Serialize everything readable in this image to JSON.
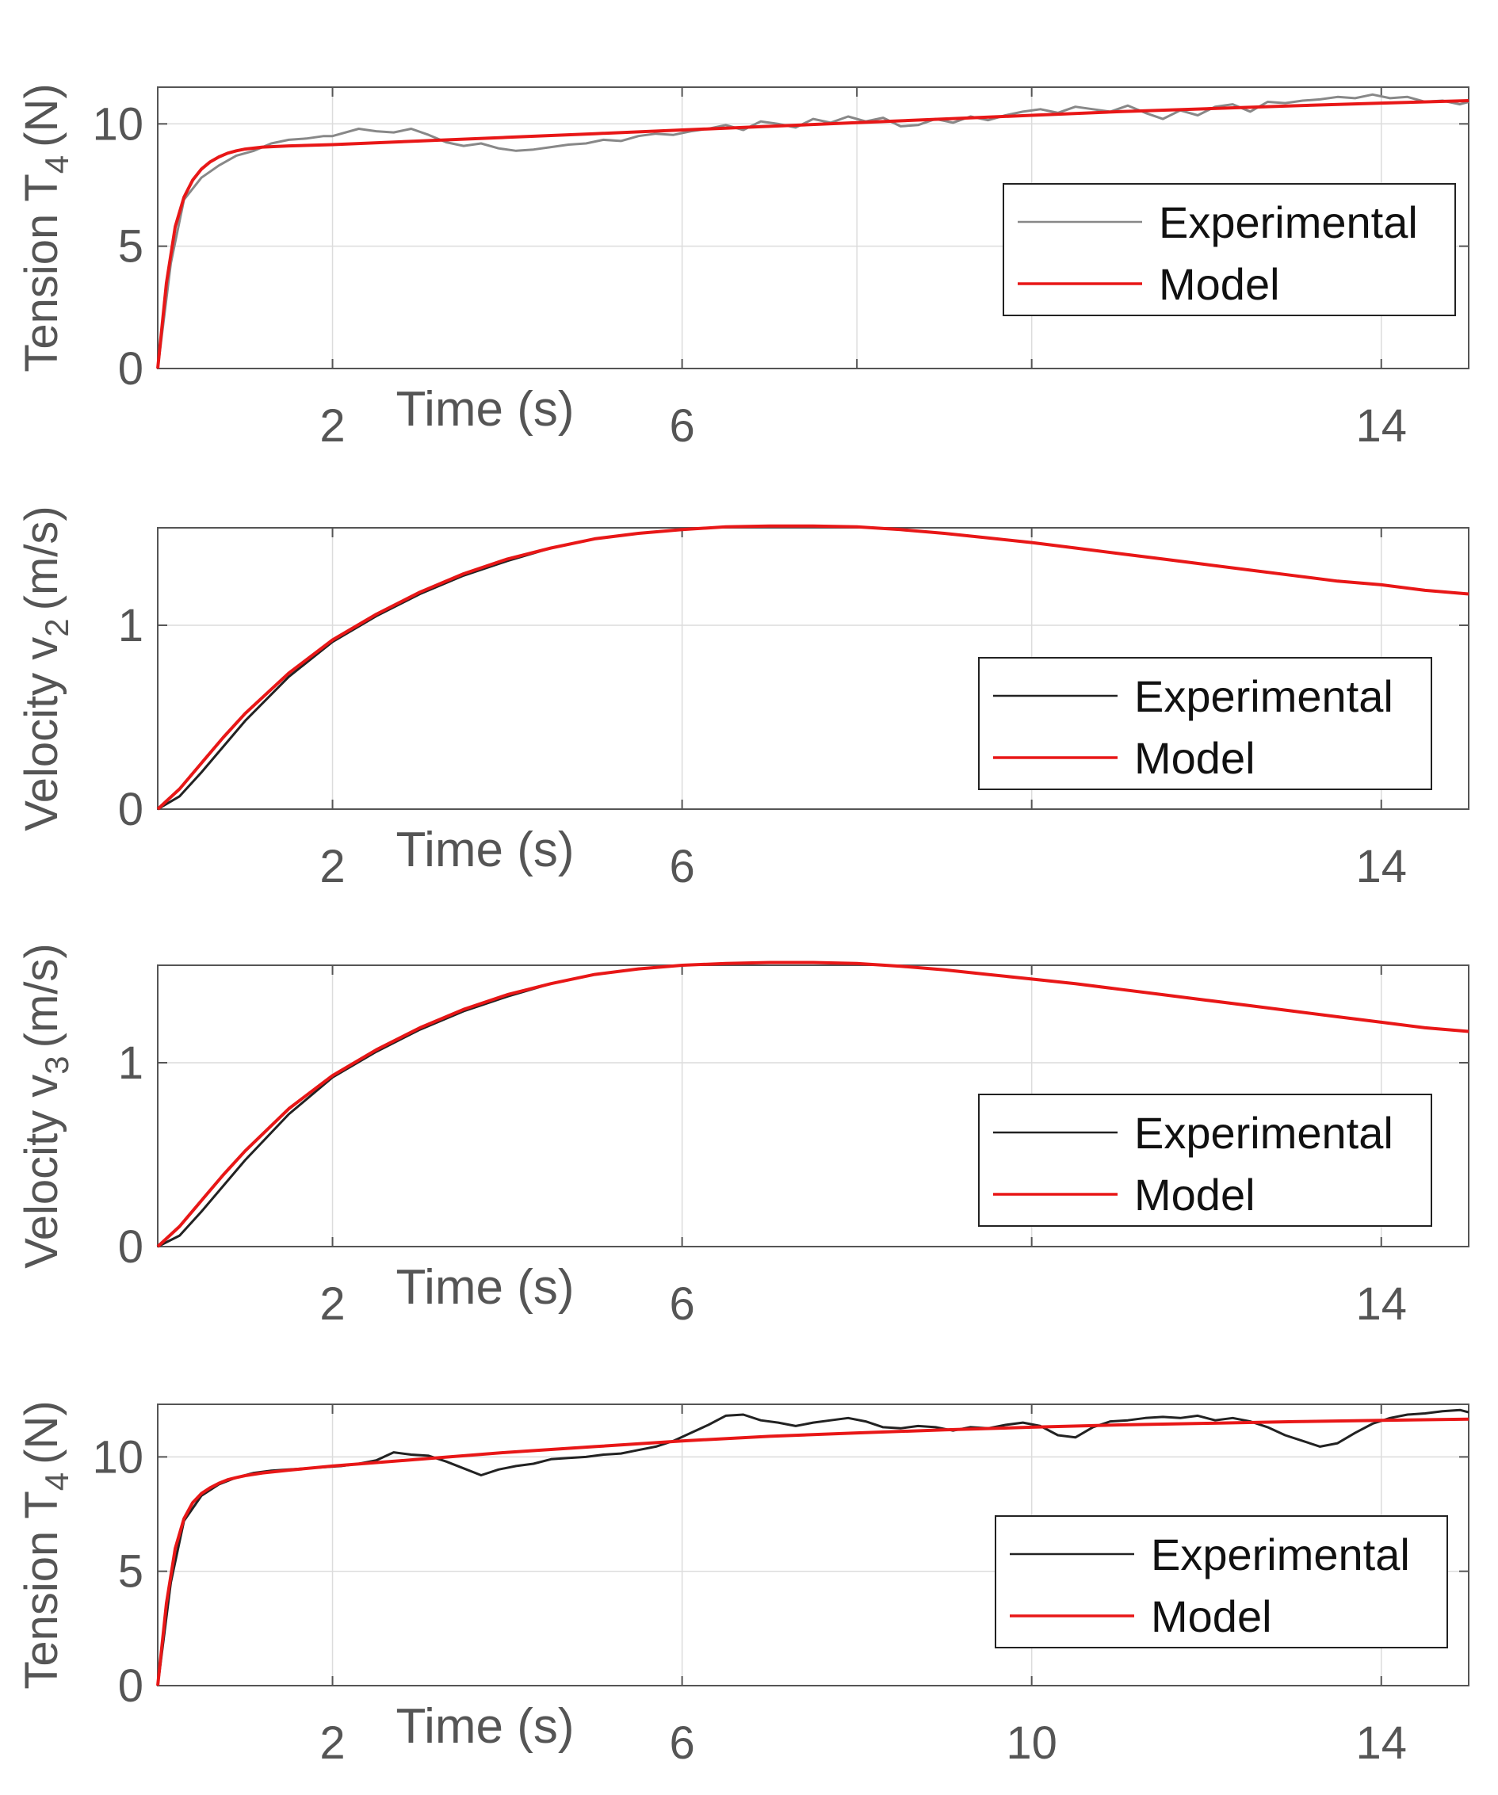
{
  "figure": {
    "line_colors": {
      "experimental_light": "#888888",
      "experimental_dark": "#222222",
      "model": "#e81717"
    },
    "grid_color": "#dcdcdc",
    "axis_color": "#555555"
  },
  "chart_data": [
    {
      "type": "line",
      "title": "",
      "xlabel": "Time (s)",
      "ylabel": "Tension T",
      "ylabel_sub": "4",
      "ylabel_unit": "(N)",
      "xlim": [
        0,
        15
      ],
      "ylim": [
        0,
        11.5
      ],
      "xticks": [
        2,
        6,
        14
      ],
      "xtick_labels": [
        "2",
        "6",
        "14"
      ],
      "xgrid": [
        2,
        6,
        8,
        10,
        14
      ],
      "yticks": [
        0,
        5,
        10
      ],
      "ytick_labels": [
        "0",
        "5",
        "10"
      ],
      "legend": {
        "position": "right",
        "entries": [
          "Experimental",
          "Model"
        ]
      },
      "series": [
        {
          "name": "Experimental",
          "color": "#888888",
          "x": [
            0,
            0.15,
            0.3,
            0.5,
            0.7,
            0.9,
            1.1,
            1.3,
            1.5,
            1.7,
            1.9,
            2.0,
            2.3,
            2.5,
            2.7,
            2.9,
            3.1,
            3.3,
            3.5,
            3.7,
            3.9,
            4.1,
            4.3,
            4.5,
            4.7,
            4.9,
            5.1,
            5.3,
            5.5,
            5.7,
            5.9,
            6.1,
            6.3,
            6.5,
            6.7,
            6.9,
            7.1,
            7.3,
            7.5,
            7.7,
            7.9,
            8.1,
            8.3,
            8.5,
            8.7,
            8.9,
            9.1,
            9.3,
            9.5,
            9.7,
            9.9,
            10.1,
            10.3,
            10.5,
            10.7,
            10.9,
            11.1,
            11.3,
            11.5,
            11.7,
            11.9,
            12.1,
            12.3,
            12.5,
            12.7,
            12.9,
            13.1,
            13.3,
            13.5,
            13.7,
            13.9,
            14.1,
            14.3,
            14.5,
            14.7,
            14.9,
            15
          ],
          "values": [
            0,
            4.3,
            6.9,
            7.8,
            8.3,
            8.7,
            8.9,
            9.2,
            9.35,
            9.4,
            9.5,
            9.5,
            9.8,
            9.7,
            9.65,
            9.8,
            9.55,
            9.25,
            9.1,
            9.2,
            9.0,
            8.9,
            8.95,
            9.05,
            9.15,
            9.2,
            9.35,
            9.3,
            9.5,
            9.6,
            9.55,
            9.7,
            9.8,
            9.95,
            9.75,
            10.1,
            10.0,
            9.85,
            10.2,
            10.05,
            10.3,
            10.1,
            10.25,
            9.9,
            9.95,
            10.2,
            10.05,
            10.3,
            10.15,
            10.35,
            10.5,
            10.6,
            10.45,
            10.7,
            10.6,
            10.5,
            10.75,
            10.45,
            10.2,
            10.55,
            10.35,
            10.7,
            10.8,
            10.5,
            10.9,
            10.85,
            10.95,
            11.0,
            11.1,
            11.05,
            11.2,
            11.05,
            11.1,
            10.9,
            10.95,
            10.8,
            10.9
          ]
        },
        {
          "name": "Model",
          "color": "#e81717",
          "x": [
            0,
            0.1,
            0.2,
            0.3,
            0.4,
            0.5,
            0.6,
            0.7,
            0.8,
            0.9,
            1.0,
            1.2,
            1.5,
            2.0,
            3.0,
            4.0,
            5.0,
            6.0,
            7.0,
            8.0,
            9.0,
            10.0,
            11.0,
            12.0,
            13.0,
            14.0,
            15.0
          ],
          "values": [
            0,
            3.5,
            5.8,
            7.0,
            7.7,
            8.15,
            8.45,
            8.65,
            8.8,
            8.9,
            8.97,
            9.05,
            9.1,
            9.15,
            9.3,
            9.45,
            9.6,
            9.75,
            9.9,
            10.05,
            10.2,
            10.35,
            10.5,
            10.62,
            10.74,
            10.85,
            10.95
          ]
        }
      ]
    },
    {
      "type": "line",
      "title": "",
      "xlabel": "Time (s)",
      "ylabel": "Velocity v",
      "ylabel_sub": "2",
      "ylabel_unit": "(m/s)",
      "xlim": [
        0,
        15
      ],
      "ylim": [
        0,
        1.53
      ],
      "xticks": [
        2,
        6,
        14
      ],
      "xtick_labels": [
        "2",
        "6",
        "14"
      ],
      "xgrid": [
        2,
        6,
        10,
        14
      ],
      "yticks": [
        0,
        1
      ],
      "ytick_labels": [
        "0",
        "1"
      ],
      "legend": {
        "position": "right",
        "entries": [
          "Experimental",
          "Model"
        ]
      },
      "series": [
        {
          "name": "Experimental",
          "color": "#222222",
          "x": [
            0,
            0.25,
            0.5,
            0.75,
            1.0,
            1.5,
            2.0,
            2.5,
            3.0,
            3.5,
            4.0,
            4.5,
            5.0,
            5.5,
            6.0,
            6.5,
            7.0,
            7.5,
            8.0,
            8.5,
            9.0,
            9.5,
            10.0,
            10.5,
            11.0,
            11.5,
            12.0,
            12.5,
            13.0,
            13.5,
            14.0,
            14.5,
            15.0
          ],
          "values": [
            0,
            0.07,
            0.2,
            0.34,
            0.48,
            0.72,
            0.91,
            1.05,
            1.17,
            1.27,
            1.35,
            1.42,
            1.47,
            1.5,
            1.52,
            1.535,
            1.54,
            1.54,
            1.535,
            1.52,
            1.5,
            1.475,
            1.45,
            1.42,
            1.39,
            1.36,
            1.33,
            1.3,
            1.27,
            1.24,
            1.22,
            1.19,
            1.17
          ]
        },
        {
          "name": "Model",
          "color": "#e81717",
          "x": [
            0,
            0.25,
            0.5,
            0.75,
            1.0,
            1.5,
            2.0,
            2.5,
            3.0,
            3.5,
            4.0,
            4.5,
            5.0,
            5.5,
            6.0,
            6.5,
            7.0,
            7.5,
            8.0,
            8.5,
            9.0,
            9.5,
            10.0,
            10.5,
            11.0,
            11.5,
            12.0,
            12.5,
            13.0,
            13.5,
            14.0,
            14.5,
            15.0
          ],
          "values": [
            0,
            0.11,
            0.25,
            0.39,
            0.52,
            0.74,
            0.92,
            1.06,
            1.18,
            1.28,
            1.36,
            1.42,
            1.47,
            1.5,
            1.52,
            1.535,
            1.54,
            1.54,
            1.535,
            1.52,
            1.5,
            1.475,
            1.45,
            1.42,
            1.39,
            1.36,
            1.33,
            1.3,
            1.27,
            1.24,
            1.22,
            1.19,
            1.17
          ]
        }
      ]
    },
    {
      "type": "line",
      "title": "",
      "xlabel": "Time (s)",
      "ylabel": "Velocity v",
      "ylabel_sub": "3",
      "ylabel_unit": "(m/s)",
      "xlim": [
        0,
        15
      ],
      "ylim": [
        0,
        1.53
      ],
      "xticks": [
        2,
        6,
        14
      ],
      "xtick_labels": [
        "2",
        "6",
        "14"
      ],
      "xgrid": [
        2,
        6,
        10,
        14
      ],
      "yticks": [
        0,
        1
      ],
      "ytick_labels": [
        "0",
        "1"
      ],
      "legend": {
        "position": "right",
        "entries": [
          "Experimental",
          "Model"
        ]
      },
      "series": [
        {
          "name": "Experimental",
          "color": "#222222",
          "x": [
            0,
            0.25,
            0.5,
            0.75,
            1.0,
            1.5,
            2.0,
            2.5,
            3.0,
            3.5,
            4.0,
            4.5,
            5.0,
            5.5,
            6.0,
            6.5,
            7.0,
            7.5,
            8.0,
            8.5,
            9.0,
            9.5,
            10.0,
            10.5,
            11.0,
            11.5,
            12.0,
            12.5,
            13.0,
            13.5,
            14.0,
            14.5,
            15.0
          ],
          "values": [
            0,
            0.06,
            0.19,
            0.33,
            0.47,
            0.72,
            0.92,
            1.06,
            1.18,
            1.28,
            1.36,
            1.43,
            1.48,
            1.51,
            1.53,
            1.54,
            1.545,
            1.545,
            1.54,
            1.525,
            1.505,
            1.48,
            1.455,
            1.43,
            1.4,
            1.37,
            1.34,
            1.31,
            1.28,
            1.25,
            1.22,
            1.19,
            1.17
          ]
        },
        {
          "name": "Model",
          "color": "#e81717",
          "x": [
            0,
            0.25,
            0.5,
            0.75,
            1.0,
            1.5,
            2.0,
            2.5,
            3.0,
            3.5,
            4.0,
            4.5,
            5.0,
            5.5,
            6.0,
            6.5,
            7.0,
            7.5,
            8.0,
            8.5,
            9.0,
            9.5,
            10.0,
            10.5,
            11.0,
            11.5,
            12.0,
            12.5,
            13.0,
            13.5,
            14.0,
            14.5,
            15.0
          ],
          "values": [
            0,
            0.11,
            0.25,
            0.39,
            0.52,
            0.75,
            0.93,
            1.07,
            1.19,
            1.29,
            1.37,
            1.43,
            1.48,
            1.51,
            1.53,
            1.54,
            1.545,
            1.545,
            1.54,
            1.525,
            1.505,
            1.48,
            1.455,
            1.43,
            1.4,
            1.37,
            1.34,
            1.31,
            1.28,
            1.25,
            1.22,
            1.19,
            1.17
          ]
        }
      ]
    },
    {
      "type": "line",
      "title": "",
      "xlabel": "Time (s)",
      "ylabel": "Tension T",
      "ylabel_sub": "4",
      "ylabel_unit": "(N)",
      "xlim": [
        0,
        15
      ],
      "ylim": [
        0,
        12.3
      ],
      "xticks": [
        2,
        6,
        10,
        14
      ],
      "xtick_labels": [
        "2",
        "6",
        "10",
        "14"
      ],
      "xgrid": [
        2,
        6,
        10,
        14
      ],
      "yticks": [
        0,
        5,
        10
      ],
      "ytick_labels": [
        "0",
        "5",
        "10"
      ],
      "legend": {
        "position": "right",
        "entries": [
          "Experimental",
          "Model"
        ]
      },
      "series": [
        {
          "name": "Experimental",
          "color": "#222222",
          "x": [
            0,
            0.15,
            0.3,
            0.5,
            0.7,
            0.9,
            1.1,
            1.3,
            1.5,
            1.7,
            1.9,
            2.1,
            2.3,
            2.5,
            2.7,
            2.9,
            3.1,
            3.3,
            3.5,
            3.7,
            3.9,
            4.1,
            4.3,
            4.5,
            4.7,
            4.9,
            5.1,
            5.3,
            5.5,
            5.7,
            5.9,
            6.1,
            6.3,
            6.5,
            6.7,
            6.9,
            7.1,
            7.3,
            7.5,
            7.7,
            7.9,
            8.1,
            8.3,
            8.5,
            8.7,
            8.9,
            9.1,
            9.3,
            9.5,
            9.7,
            9.9,
            10.1,
            10.3,
            10.5,
            10.7,
            10.9,
            11.1,
            11.3,
            11.5,
            11.7,
            11.9,
            12.1,
            12.3,
            12.5,
            12.7,
            12.9,
            13.1,
            13.3,
            13.5,
            13.7,
            13.9,
            14.1,
            14.3,
            14.5,
            14.7,
            14.9,
            15
          ],
          "values": [
            0,
            4.5,
            7.2,
            8.3,
            8.8,
            9.1,
            9.3,
            9.4,
            9.45,
            9.5,
            9.55,
            9.6,
            9.7,
            9.85,
            10.2,
            10.1,
            10.05,
            9.8,
            9.5,
            9.2,
            9.45,
            9.6,
            9.7,
            9.9,
            9.95,
            10.0,
            10.1,
            10.15,
            10.3,
            10.45,
            10.7,
            11.05,
            11.4,
            11.8,
            11.85,
            11.6,
            11.5,
            11.35,
            11.5,
            11.6,
            11.7,
            11.55,
            11.3,
            11.25,
            11.35,
            11.3,
            11.15,
            11.3,
            11.25,
            11.4,
            11.5,
            11.35,
            10.95,
            10.85,
            11.3,
            11.55,
            11.6,
            11.7,
            11.75,
            11.7,
            11.8,
            11.6,
            11.7,
            11.55,
            11.3,
            10.95,
            10.7,
            10.45,
            10.6,
            11.05,
            11.45,
            11.7,
            11.85,
            11.9,
            12.0,
            12.05,
            11.95
          ]
        },
        {
          "name": "Model",
          "color": "#e81717",
          "x": [
            0,
            0.1,
            0.2,
            0.3,
            0.4,
            0.5,
            0.6,
            0.7,
            0.8,
            0.9,
            1.0,
            1.2,
            1.5,
            2.0,
            3.0,
            4.0,
            5.0,
            6.0,
            7.0,
            8.0,
            9.0,
            10.0,
            11.0,
            12.0,
            13.0,
            14.0,
            15.0
          ],
          "values": [
            0,
            3.6,
            6.0,
            7.3,
            8.0,
            8.4,
            8.65,
            8.85,
            9.0,
            9.1,
            9.18,
            9.3,
            9.42,
            9.6,
            9.9,
            10.2,
            10.45,
            10.7,
            10.9,
            11.05,
            11.18,
            11.3,
            11.4,
            11.47,
            11.54,
            11.6,
            11.65
          ]
        }
      ]
    }
  ]
}
